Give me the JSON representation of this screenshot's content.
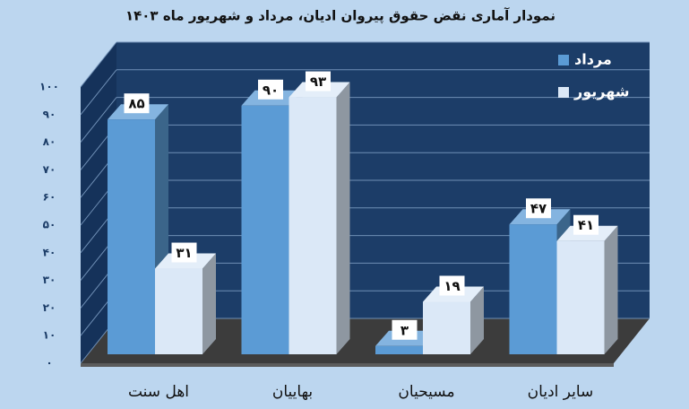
{
  "chart_data": {
    "type": "bar3d",
    "title": "نمودار آماری نقض حقوق پیروان ادیان، مرداد و شهریور ماه ۱۴۰۳",
    "categories": [
      "اهل سنت",
      "بهاییان",
      "مسیحیان",
      "سایر ادیان"
    ],
    "series": [
      {
        "name": "مرداد",
        "color": "#5b9bd5",
        "values": [
          85,
          90,
          3,
          47
        ],
        "value_labels": [
          "۸۵",
          "۹۰",
          "۳",
          "۴۷"
        ]
      },
      {
        "name": "شهریور",
        "color": "#dbe8f7",
        "values": [
          31,
          93,
          19,
          41
        ],
        "value_labels": [
          "۳۱",
          "۹۳",
          "۱۹",
          "۴۱"
        ]
      }
    ],
    "ylim": [
      0,
      100
    ],
    "yticks": [
      {
        "value": 0,
        "label": "۰"
      },
      {
        "value": 10,
        "label": "۱۰"
      },
      {
        "value": 20,
        "label": "۲۰"
      },
      {
        "value": 30,
        "label": "۳۰"
      },
      {
        "value": 40,
        "label": "۴۰"
      },
      {
        "value": 50,
        "label": "۵۰"
      },
      {
        "value": 60,
        "label": "۶۰"
      },
      {
        "value": 70,
        "label": "۷۰"
      },
      {
        "value": 80,
        "label": "۸۰"
      },
      {
        "value": 90,
        "label": "۹۰"
      },
      {
        "value": 100,
        "label": "۱۰۰"
      }
    ],
    "grid": true,
    "legend": "top-right"
  }
}
